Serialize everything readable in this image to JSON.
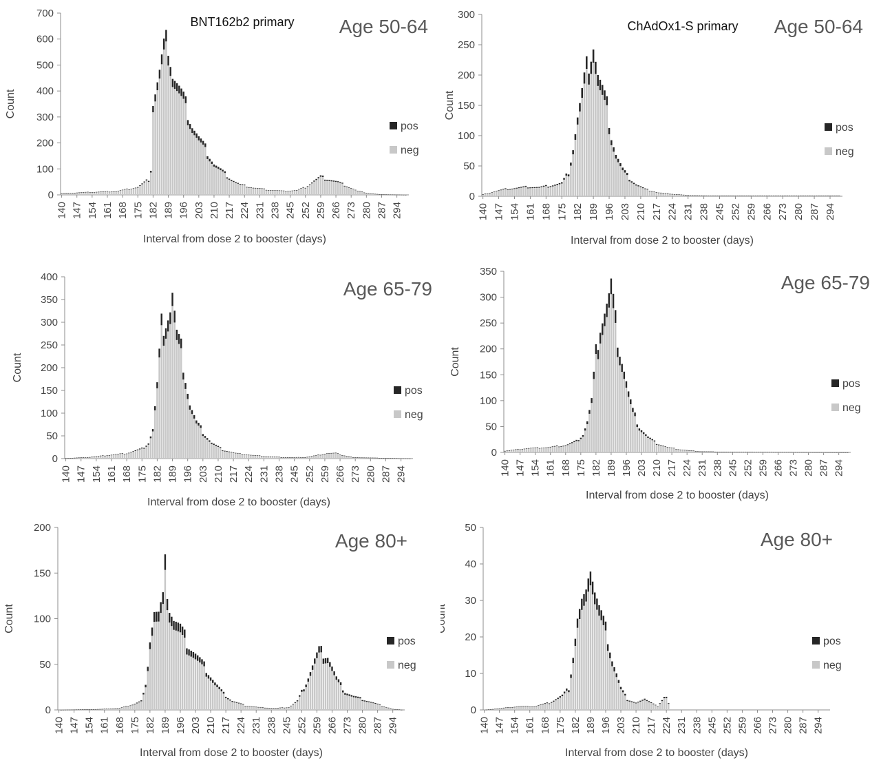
{
  "figure": {
    "colors": {
      "pos": "#262626",
      "neg": "#c8c8c8",
      "axis": "#8c8c8c",
      "text": "#444444"
    },
    "panel_order": [
      "p1",
      "p2",
      "p3",
      "p4",
      "p5",
      "p6"
    ]
  },
  "chart_data": [
    {
      "id": "p1",
      "type": "bar",
      "stacked": true,
      "title": "BNT162b2 primary",
      "age_label": "Age 50-64",
      "xlabel": "Interval from dose 2 to booster (days)",
      "ylabel": "Count",
      "xlim": [
        140,
        299
      ],
      "ylim": [
        0,
        700
      ],
      "yticks": [
        0,
        100,
        200,
        300,
        400,
        500,
        600,
        700
      ],
      "xticks": [
        140,
        147,
        154,
        161,
        168,
        175,
        182,
        189,
        196,
        203,
        210,
        217,
        224,
        231,
        238,
        245,
        252,
        259,
        266,
        273,
        280,
        287,
        294
      ],
      "legend": [
        "pos",
        "neg"
      ],
      "legend_position": "right",
      "peaks": [
        [
          140,
          6
        ],
        [
          150,
          10
        ],
        [
          165,
          14
        ],
        [
          175,
          30
        ],
        [
          180,
          60
        ],
        [
          181,
          100
        ],
        [
          182,
          360
        ],
        [
          185,
          470
        ],
        [
          187,
          560
        ],
        [
          189,
          595
        ],
        [
          191,
          470
        ],
        [
          193,
          430
        ],
        [
          196,
          370
        ],
        [
          198,
          320
        ],
        [
          200,
          270
        ],
        [
          203,
          220
        ],
        [
          206,
          180
        ],
        [
          210,
          120
        ],
        [
          214,
          90
        ],
        [
          218,
          60
        ],
        [
          222,
          40
        ],
        [
          228,
          28
        ],
        [
          235,
          20
        ],
        [
          242,
          15
        ],
        [
          248,
          18
        ],
        [
          252,
          30
        ],
        [
          256,
          55
        ],
        [
          259,
          70
        ],
        [
          263,
          60
        ],
        [
          267,
          50
        ],
        [
          271,
          35
        ],
        [
          276,
          15
        ],
        [
          282,
          5
        ],
        [
          287,
          2
        ],
        [
          299,
          0
        ]
      ],
      "pos_fraction": 0.07
    },
    {
      "id": "p2",
      "type": "bar",
      "stacked": true,
      "title": "ChAdOx1-S primary",
      "age_label": "Age 50-64",
      "xlabel": "Interval from dose 2 to booster (days)",
      "ylabel": "Count",
      "xlim": [
        140,
        299
      ],
      "ylim": [
        0,
        300
      ],
      "yticks": [
        0,
        50,
        100,
        150,
        200,
        250,
        300
      ],
      "xticks": [
        140,
        147,
        154,
        161,
        168,
        175,
        182,
        189,
        196,
        203,
        210,
        217,
        224,
        231,
        238,
        245,
        252,
        259,
        266,
        273,
        280,
        287,
        294
      ],
      "legend": [
        "pos",
        "neg"
      ],
      "legend_position": "right",
      "peaks": [
        [
          140,
          3
        ],
        [
          145,
          8
        ],
        [
          150,
          12
        ],
        [
          155,
          14
        ],
        [
          160,
          16
        ],
        [
          165,
          15
        ],
        [
          170,
          18
        ],
        [
          175,
          22
        ],
        [
          178,
          40
        ],
        [
          180,
          80
        ],
        [
          182,
          130
        ],
        [
          184,
          170
        ],
        [
          186,
          210
        ],
        [
          188,
          240
        ],
        [
          189,
          255
        ],
        [
          191,
          200
        ],
        [
          193,
          175
        ],
        [
          195,
          150
        ],
        [
          197,
          100
        ],
        [
          199,
          70
        ],
        [
          202,
          45
        ],
        [
          205,
          30
        ],
        [
          208,
          20
        ],
        [
          212,
          12
        ],
        [
          218,
          6
        ],
        [
          224,
          4
        ],
        [
          230,
          2
        ],
        [
          240,
          1
        ],
        [
          298,
          1
        ]
      ],
      "pos_fraction": 0.09
    },
    {
      "id": "p3",
      "type": "bar",
      "stacked": true,
      "title": "",
      "age_label": "Age 65-79",
      "xlabel": "Interval from dose 2 to booster (days)",
      "ylabel": "Count",
      "xlim": [
        140,
        299
      ],
      "ylim": [
        0,
        400
      ],
      "yticks": [
        0,
        50,
        100,
        150,
        200,
        250,
        300,
        350,
        400
      ],
      "xticks": [
        140,
        147,
        154,
        161,
        168,
        175,
        182,
        189,
        196,
        203,
        210,
        217,
        224,
        231,
        238,
        245,
        252,
        259,
        266,
        273,
        280,
        287,
        294
      ],
      "legend": [
        "pos",
        "neg"
      ],
      "legend_position": "right",
      "peaks": [
        [
          140,
          1
        ],
        [
          150,
          3
        ],
        [
          160,
          8
        ],
        [
          168,
          12
        ],
        [
          175,
          22
        ],
        [
          178,
          35
        ],
        [
          180,
          65
        ],
        [
          182,
          160
        ],
        [
          184,
          290
        ],
        [
          186,
          310
        ],
        [
          188,
          330
        ],
        [
          189,
          365
        ],
        [
          191,
          270
        ],
        [
          193,
          240
        ],
        [
          195,
          180
        ],
        [
          197,
          120
        ],
        [
          200,
          80
        ],
        [
          203,
          60
        ],
        [
          207,
          35
        ],
        [
          212,
          20
        ],
        [
          218,
          12
        ],
        [
          225,
          8
        ],
        [
          232,
          5
        ],
        [
          240,
          3
        ],
        [
          250,
          3
        ],
        [
          256,
          8
        ],
        [
          260,
          12
        ],
        [
          264,
          12
        ],
        [
          268,
          7
        ],
        [
          272,
          3
        ],
        [
          280,
          2
        ],
        [
          299,
          0
        ]
      ],
      "pos_fraction": 0.08
    },
    {
      "id": "p4",
      "type": "bar",
      "stacked": true,
      "title": "",
      "age_label": "Age 65-79",
      "xlabel": "Interval from dose 2 to booster (days)",
      "ylabel": "Count",
      "xlim": [
        140,
        299
      ],
      "ylim": [
        0,
        350
      ],
      "yticks": [
        0,
        50,
        100,
        150,
        200,
        250,
        300,
        350
      ],
      "xticks": [
        140,
        147,
        154,
        161,
        168,
        175,
        182,
        189,
        196,
        203,
        210,
        217,
        224,
        231,
        238,
        245,
        252,
        259,
        266,
        273,
        280,
        287,
        294
      ],
      "legend": [
        "pos",
        "neg"
      ],
      "legend_position": "right",
      "peaks": [
        [
          140,
          3
        ],
        [
          150,
          8
        ],
        [
          160,
          10
        ],
        [
          168,
          14
        ],
        [
          173,
          22
        ],
        [
          176,
          35
        ],
        [
          178,
          60
        ],
        [
          180,
          100
        ],
        [
          182,
          190
        ],
        [
          184,
          250
        ],
        [
          186,
          275
        ],
        [
          188,
          300
        ],
        [
          189,
          320
        ],
        [
          191,
          250
        ],
        [
          193,
          200
        ],
        [
          195,
          160
        ],
        [
          197,
          115
        ],
        [
          199,
          80
        ],
        [
          202,
          50
        ],
        [
          206,
          30
        ],
        [
          210,
          18
        ],
        [
          215,
          10
        ],
        [
          222,
          5
        ],
        [
          230,
          2
        ],
        [
          245,
          1
        ],
        [
          299,
          0
        ]
      ],
      "pos_fraction": 0.09
    },
    {
      "id": "p5",
      "type": "bar",
      "stacked": true,
      "title": "",
      "age_label": "Age 80+",
      "xlabel": "Interval from dose 2 to booster (days)",
      "ylabel": "Count",
      "xlim": [
        140,
        299
      ],
      "ylim": [
        0,
        200
      ],
      "yticks": [
        0,
        50,
        100,
        150,
        200
      ],
      "xticks": [
        140,
        147,
        154,
        161,
        168,
        175,
        182,
        189,
        196,
        203,
        210,
        217,
        224,
        231,
        238,
        245,
        252,
        259,
        266,
        273,
        280,
        287,
        294
      ],
      "legend": [
        "pos",
        "neg"
      ],
      "legend_position": "right",
      "peaks": [
        [
          140,
          0
        ],
        [
          160,
          1
        ],
        [
          168,
          2
        ],
        [
          174,
          6
        ],
        [
          178,
          10
        ],
        [
          180,
          25
        ],
        [
          182,
          80
        ],
        [
          184,
          110
        ],
        [
          186,
          105
        ],
        [
          188,
          120
        ],
        [
          189,
          155
        ],
        [
          191,
          115
        ],
        [
          193,
          100
        ],
        [
          196,
          90
        ],
        [
          199,
          75
        ],
        [
          202,
          65
        ],
        [
          205,
          55
        ],
        [
          208,
          45
        ],
        [
          212,
          30
        ],
        [
          216,
          18
        ],
        [
          220,
          10
        ],
        [
          226,
          5
        ],
        [
          232,
          3
        ],
        [
          240,
          2
        ],
        [
          246,
          3
        ],
        [
          250,
          10
        ],
        [
          254,
          30
        ],
        [
          258,
          55
        ],
        [
          260,
          65
        ],
        [
          264,
          60
        ],
        [
          268,
          35
        ],
        [
          272,
          20
        ],
        [
          276,
          15
        ],
        [
          280,
          12
        ],
        [
          285,
          8
        ],
        [
          290,
          4
        ],
        [
          294,
          1
        ],
        [
          299,
          0
        ]
      ],
      "pos_fraction": 0.1
    },
    {
      "id": "p6",
      "type": "bar",
      "stacked": true,
      "title": "",
      "age_label": "Age 80+",
      "xlabel": "Interval from dose 2 to booster (days)",
      "ylabel": "Count",
      "xlim": [
        140,
        299
      ],
      "ylim": [
        0,
        50
      ],
      "yticks": [
        0,
        10,
        20,
        30,
        40,
        50
      ],
      "xticks": [
        140,
        147,
        154,
        161,
        168,
        175,
        182,
        189,
        196,
        203,
        210,
        217,
        224,
        231,
        238,
        245,
        252,
        259,
        266,
        273,
        280,
        287,
        294
      ],
      "legend": [
        "pos",
        "neg"
      ],
      "legend_position": "right",
      "peaks": [
        [
          140,
          0
        ],
        [
          156,
          1
        ],
        [
          163,
          1
        ],
        [
          170,
          2
        ],
        [
          176,
          4
        ],
        [
          179,
          6
        ],
        [
          181,
          15
        ],
        [
          183,
          25
        ],
        [
          185,
          29
        ],
        [
          187,
          30
        ],
        [
          188,
          40
        ],
        [
          189,
          41
        ],
        [
          191,
          33
        ],
        [
          193,
          28
        ],
        [
          195,
          24
        ],
        [
          197,
          20
        ],
        [
          199,
          14
        ],
        [
          201,
          10
        ],
        [
          203,
          6
        ],
        [
          206,
          3
        ],
        [
          210,
          2
        ],
        [
          215,
          3
        ],
        [
          220,
          1
        ],
        [
          224,
          4
        ],
        [
          226,
          0
        ],
        [
          299,
          0
        ]
      ],
      "pos_fraction": 0.1
    }
  ]
}
